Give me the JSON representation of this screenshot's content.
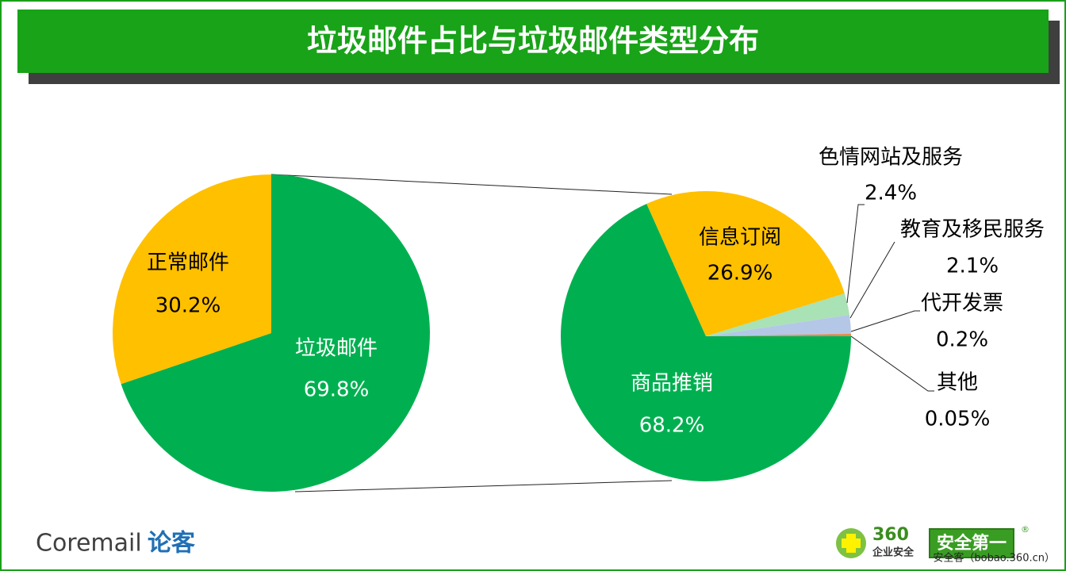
{
  "title": "垃圾邮件占比与垃圾邮件类型分布",
  "chart_data": [
    {
      "type": "pie",
      "categories": [
        "垃圾邮件",
        "正常邮件"
      ],
      "values": [
        69.8,
        30.2
      ],
      "value_labels": [
        "69.8%",
        "30.2%"
      ],
      "colors": [
        "#00b050",
        "#ffc000"
      ]
    },
    {
      "type": "pie",
      "categories": [
        "商品推销",
        "信息订阅",
        "色情网站及服务",
        "教育及移民服务",
        "代开发票",
        "其他"
      ],
      "values": [
        68.2,
        26.9,
        2.4,
        2.1,
        0.2,
        0.05
      ],
      "value_labels": [
        "68.2%",
        "26.9%",
        "2.4%",
        "2.1%",
        "0.2%",
        "0.05%"
      ],
      "colors": [
        "#00b050",
        "#ffc000",
        "#a9e2b5",
        "#b4c7e7",
        "#ed7d31",
        "#a5a5a5"
      ]
    }
  ],
  "footer": {
    "brand": "Coremail",
    "brand_cn": "论客",
    "logo_number": "360",
    "logo_sub": "企业安全",
    "badge": "安全第一",
    "registered": "®",
    "source": "安全客（bobao.360.cn）"
  }
}
